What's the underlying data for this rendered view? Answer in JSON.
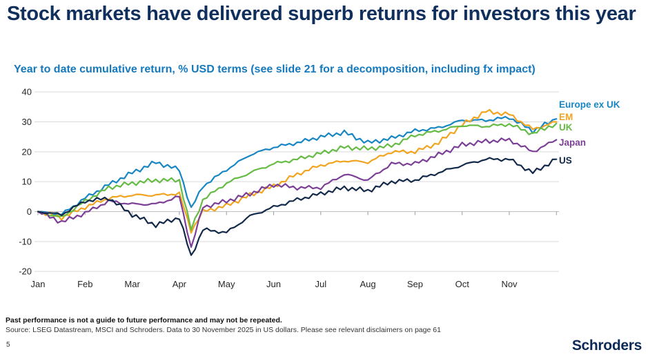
{
  "slide": {
    "title": "Stock markets have delivered superb returns for investors this year",
    "subtitle": "Year to date cumulative return, % USD terms (see slide 21 for a decomposition, including fx impact)",
    "page_number": "5",
    "logo_text": "Schroders",
    "colors": {
      "title": "#112f5c",
      "subtitle": "#1579be",
      "logo": "#0c2a57",
      "gridline": "#d9d9d9",
      "zero_line": "#bfbfbf",
      "axis_text": "#262626"
    }
  },
  "footer": {
    "disclaimer": "Past performance is not a guide to future performance and may not be repeated.",
    "source": "Source: LSEG Datastream, MSCI and Schroders. Data to 30 November 2025 in US dollars. Please see relevant disclaimers on page 61"
  },
  "chart_data": {
    "type": "line",
    "title": "Year to date cumulative return, % USD terms",
    "unit": "%",
    "ylim": [
      -20,
      40
    ],
    "y_ticks": [
      40,
      30,
      20,
      10,
      0,
      -10,
      -20
    ],
    "x_axis_ticks": [
      "Jan",
      "Feb",
      "Mar",
      "Apr",
      "May",
      "Jun",
      "Jul",
      "Aug",
      "Sep",
      "Oct",
      "Nov"
    ],
    "grid": "horizontal",
    "legend_position": "right",
    "x": [
      "1 Jan",
      "15 Jan",
      "1 Feb",
      "15 Feb",
      "1 Mar",
      "15 Mar",
      "1 Apr",
      "8 Apr",
      "15 Apr",
      "1 May",
      "15 May",
      "1 Jun",
      "15 Jun",
      "1 Jul",
      "15 Jul",
      "1 Aug",
      "15 Aug",
      "1 Sep",
      "15 Sep",
      "1 Oct",
      "15 Oct",
      "1 Nov",
      "15 Nov",
      "30 Nov"
    ],
    "x_numeric_months": [
      0,
      0.5,
      1,
      1.5,
      2,
      2.5,
      3,
      3.25,
      3.5,
      4,
      4.5,
      5,
      5.5,
      6,
      6.5,
      7,
      7.5,
      8,
      8.5,
      9,
      9.5,
      10,
      10.5,
      11
    ],
    "series": [
      {
        "name": "Europe ex UK",
        "color": "#1786c3",
        "values": [
          0,
          -1,
          4.5,
          9,
          13,
          16.5,
          14,
          1,
          8.5,
          14,
          19,
          21.5,
          23,
          25,
          26.5,
          23,
          24.5,
          27,
          28,
          30.5,
          30.5,
          31.5,
          27,
          31
        ]
      },
      {
        "name": "EM",
        "color": "#f0a41f",
        "values": [
          0,
          -2,
          1.5,
          4.5,
          5.5,
          5.5,
          6,
          -6.5,
          0,
          2,
          5.5,
          8.5,
          12.5,
          15.5,
          17,
          16.5,
          20,
          20,
          23,
          29,
          33.5,
          32.5,
          27.5,
          30
        ]
      },
      {
        "name": "UK",
        "color": "#66bb45",
        "values": [
          0,
          -2,
          3.5,
          8,
          9.5,
          10.5,
          10.5,
          -6,
          4,
          9.5,
          13,
          16,
          17.5,
          19.5,
          21.5,
          21,
          22,
          25.5,
          27,
          28.8,
          28.5,
          29.2,
          26,
          29.5
        ]
      },
      {
        "name": "Japan",
        "color": "#7c3f97",
        "values": [
          0,
          -3.5,
          -0.5,
          3.5,
          2.5,
          2.5,
          5,
          -12,
          1.5,
          3.5,
          6,
          9,
          8,
          8,
          12.5,
          10.5,
          16,
          16,
          19,
          22.3,
          23.5,
          24,
          20,
          24
        ]
      },
      {
        "name": "US",
        "color": "#13294a",
        "values": [
          0,
          -1,
          3.5,
          4.5,
          -1,
          -4.5,
          -2,
          -15,
          -6,
          -7,
          -1.5,
          1.5,
          4,
          6,
          8,
          7,
          10,
          10.5,
          13,
          15.5,
          17.5,
          17.5,
          13,
          17.5
        ]
      }
    ],
    "legend_order": [
      "Europe ex UK",
      "EM",
      "UK",
      "Japan",
      "US"
    ]
  }
}
